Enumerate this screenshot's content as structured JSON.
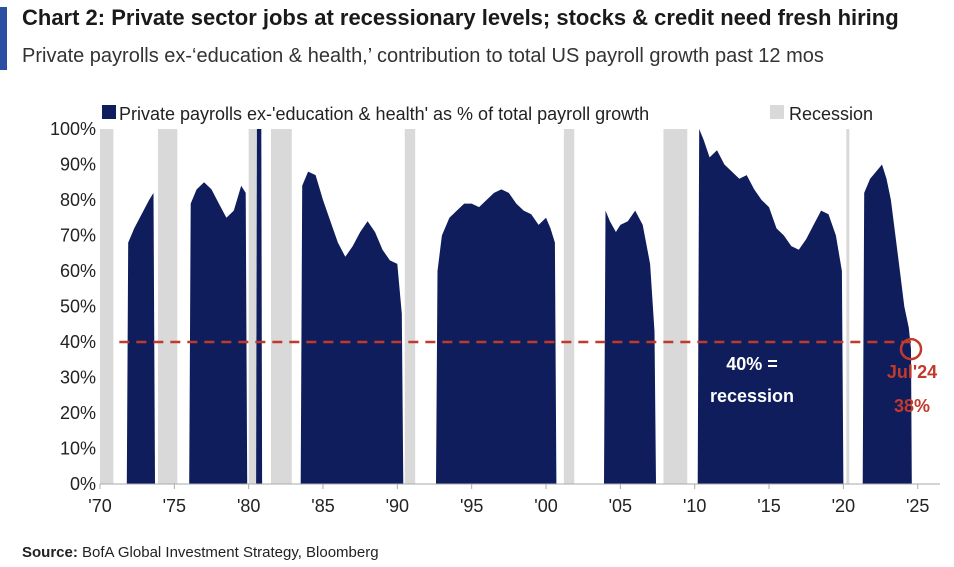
{
  "title": "Chart 2: Private sector jobs at recessionary levels; stocks & credit need fresh hiring",
  "subtitle": "Private payrolls ex-‘education & health,’ contribution to total US payroll growth past 12 mos",
  "source": {
    "label": "Source:",
    "text": "BofA Global Investment Strategy, Bloomberg"
  },
  "colors": {
    "accent": "#2c4ea3",
    "series": "#0f1d5c",
    "recession": "#d9d9d9",
    "threshold": "#c0392b",
    "axis": "#aaaaaa"
  },
  "chart_data": {
    "type": "area",
    "title": "Chart 2: Private sector jobs at recessionary levels; stocks & credit need fresh hiring",
    "subtitle": "Private payrolls ex-‘education & health,’ contribution to total US payroll growth past 12 mos",
    "xlabel": "",
    "ylabel": "",
    "xlim": [
      1970,
      2026.5
    ],
    "ylim": [
      0,
      100
    ],
    "grid": false,
    "legend_position": "top",
    "x_ticks": [
      1970,
      1975,
      1980,
      1985,
      1990,
      1995,
      2000,
      2005,
      2010,
      2015,
      2020,
      2025
    ],
    "x_tick_labels": [
      "'70",
      "'75",
      "'80",
      "'85",
      "'90",
      "'95",
      "'00",
      "'05",
      "'10",
      "'15",
      "'20",
      "'25"
    ],
    "y_ticks": [
      0,
      10,
      20,
      30,
      40,
      50,
      60,
      70,
      80,
      90,
      100
    ],
    "y_tick_labels": [
      "0%",
      "10%",
      "20%",
      "30%",
      "40%",
      "50%",
      "60%",
      "70%",
      "80%",
      "90%",
      "100%"
    ],
    "legend": [
      {
        "label": "Private payrolls ex-'education & health' as % of total payroll growth",
        "color": "#0f1d5c"
      },
      {
        "label": "Recession",
        "color": "#d9d9d9"
      }
    ],
    "recessions": [
      [
        1970.0,
        1970.9
      ],
      [
        1973.9,
        1975.2
      ],
      [
        1980.0,
        1980.5
      ],
      [
        1981.5,
        1982.9
      ],
      [
        1990.5,
        1991.2
      ],
      [
        2001.2,
        2001.9
      ],
      [
        2007.9,
        2009.5
      ],
      [
        2020.2,
        2020.4
      ]
    ],
    "series": [
      {
        "name": "Private payrolls ex-'education & health' as % of total payroll growth",
        "segments": [
          {
            "x": [
              1971.8,
              1971.9,
              1972.3,
              1972.8,
              1973.3,
              1973.6,
              1973.7
            ],
            "y": [
              0,
              68,
              72,
              76,
              80,
              82,
              0
            ]
          },
          {
            "x": [
              1976.0,
              1976.1,
              1976.5,
              1977.0,
              1977.5,
              1978.0,
              1978.5,
              1979.0,
              1979.5,
              1979.8,
              1979.9
            ],
            "y": [
              0,
              79,
              83,
              85,
              83,
              79,
              75,
              77,
              84,
              82,
              0
            ]
          },
          {
            "x": [
              1980.5,
              1980.55,
              1980.85,
              1980.9
            ],
            "y": [
              0,
              100,
              100,
              0
            ]
          },
          {
            "x": [
              1983.5,
              1983.6,
              1984.0,
              1984.5,
              1985.0,
              1985.5,
              1986.0,
              1986.5,
              1987.0,
              1987.5,
              1988.0,
              1988.5,
              1989.0,
              1989.5,
              1990.0,
              1990.3,
              1990.4
            ],
            "y": [
              0,
              84,
              88,
              87,
              80,
              74,
              68,
              64,
              67,
              71,
              74,
              71,
              66,
              63,
              62,
              48,
              0
            ]
          },
          {
            "x": [
              1992.6,
              1992.7,
              1993.0,
              1993.5,
              1994.0,
              1994.5,
              1995.0,
              1995.5,
              1996.0,
              1996.5,
              1997.0,
              1997.5,
              1998.0,
              1998.5,
              1999.0,
              1999.5,
              2000.0,
              2000.3,
              2000.6,
              2000.7
            ],
            "y": [
              0,
              60,
              70,
              75,
              77,
              79,
              79,
              78,
              80,
              82,
              83,
              82,
              79,
              77,
              76,
              73,
              75,
              72,
              68,
              0
            ]
          },
          {
            "x": [
              2003.9,
              2004.0,
              2004.3,
              2004.7,
              2005.0,
              2005.5,
              2006.0,
              2006.5,
              2007.0,
              2007.3,
              2007.4
            ],
            "y": [
              0,
              77,
              74,
              71,
              73,
              74,
              77,
              73,
              62,
              43,
              0
            ]
          },
          {
            "x": [
              2010.2,
              2010.3,
              2010.6,
              2011.0,
              2011.5,
              2012.0,
              2012.5,
              2013.0,
              2013.5,
              2014.0,
              2014.5,
              2015.0,
              2015.5,
              2016.0,
              2016.5,
              2017.0,
              2017.5,
              2018.0,
              2018.5,
              2019.0,
              2019.5,
              2019.9,
              2020.0
            ],
            "y": [
              0,
              100,
              97,
              92,
              94,
              90,
              88,
              86,
              87,
              83,
              80,
              78,
              72,
              70,
              67,
              66,
              69,
              73,
              77,
              76,
              70,
              60,
              0
            ]
          },
          {
            "x": [
              2021.3,
              2021.4,
              2021.8,
              2022.2,
              2022.6,
              2022.9,
              2023.2,
              2023.5,
              2023.8,
              2024.1,
              2024.4,
              2024.55,
              2024.6
            ],
            "y": [
              0,
              82,
              86,
              88,
              90,
              86,
              80,
              70,
              60,
              50,
              44,
              38,
              0
            ]
          }
        ]
      }
    ],
    "threshold": {
      "y": 40,
      "label_line1": "40% =",
      "label_line2": "recession"
    },
    "callout": {
      "x": 2024.55,
      "y": 38,
      "label_line1": "Jul'24",
      "label_line2": "38%"
    }
  }
}
